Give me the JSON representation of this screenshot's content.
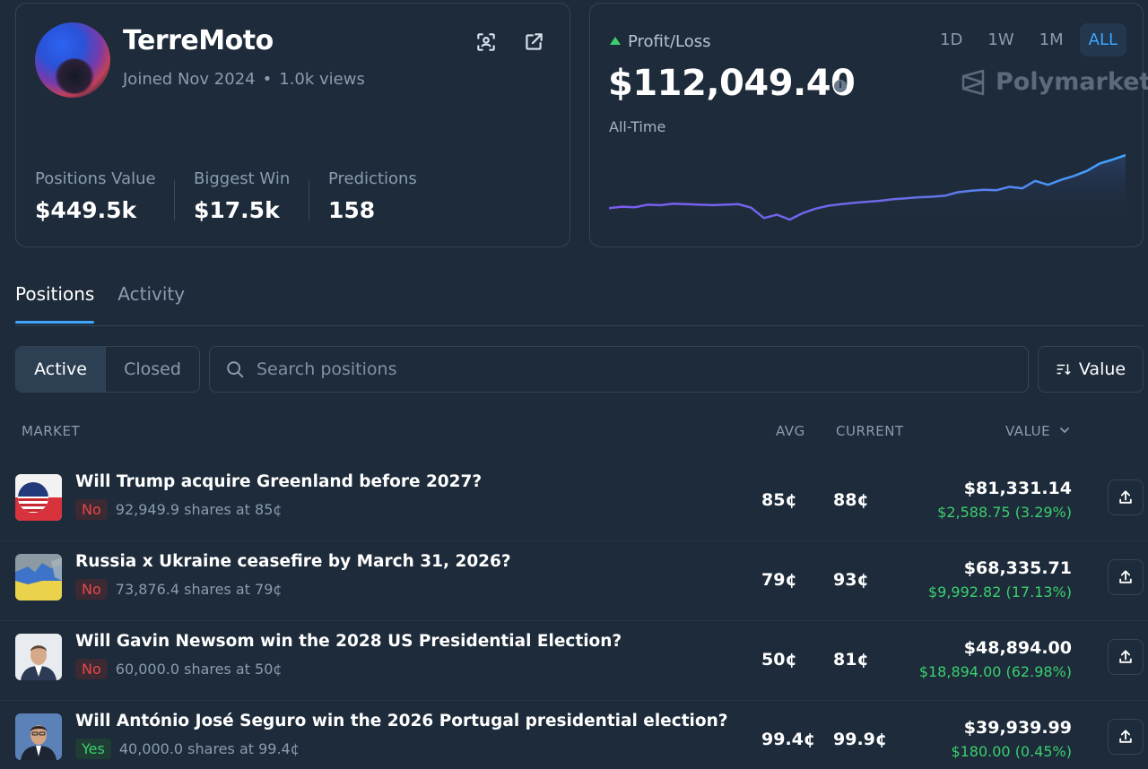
{
  "profile": {
    "username": "TerreMoto",
    "joined": "Joined Nov 2024",
    "views": "1.0k views",
    "stats": [
      {
        "label": "Positions Value",
        "value": "$449.5k"
      },
      {
        "label": "Biggest Win",
        "value": "$17.5k"
      },
      {
        "label": "Predictions",
        "value": "158"
      }
    ]
  },
  "pnl": {
    "label": "Profit/Loss",
    "value": "$112,049.40",
    "period_label": "All-Time",
    "ranges": [
      "1D",
      "1W",
      "1M",
      "ALL"
    ],
    "active_range": "ALL",
    "brand": "Polymarket",
    "accent_color": "#3ea6ff",
    "up_color": "#3ccf6e"
  },
  "chart_data": {
    "type": "line",
    "title": "",
    "xlabel": "",
    "ylabel": "",
    "x": [
      0,
      1,
      2,
      3,
      4,
      5,
      6,
      7,
      8,
      9,
      10,
      11,
      12,
      13,
      14,
      15,
      16,
      17,
      18,
      19,
      20,
      21,
      22,
      23,
      24,
      25,
      26,
      27,
      28,
      29,
      30,
      31,
      32,
      33,
      34,
      35,
      36,
      37,
      38,
      39,
      40
    ],
    "values": [
      5,
      8,
      7,
      12,
      11,
      14,
      13,
      12,
      11,
      12,
      13,
      6,
      -15,
      -8,
      -18,
      -5,
      4,
      10,
      13,
      16,
      18,
      20,
      23,
      25,
      27,
      28,
      30,
      37,
      40,
      42,
      41,
      48,
      45,
      60,
      52,
      62,
      70,
      80,
      95,
      103,
      112
    ],
    "color_gradient": [
      "#7b5cf0",
      "#3ea6ff"
    ]
  },
  "tabs": [
    "Positions",
    "Activity"
  ],
  "active_tab": "Positions",
  "filters": {
    "segments": [
      "Active",
      "Closed"
    ],
    "active_segment": "Active",
    "search_placeholder": "Search positions",
    "sort_label": "Value"
  },
  "table": {
    "headers": {
      "market": "MARKET",
      "avg": "AVG",
      "current": "CURRENT",
      "value": "VALUE"
    },
    "rows": [
      {
        "title": "Will Trump acquire Greenland before 2027?",
        "outcome": "No",
        "shares": "92,949.9 shares at 85¢",
        "avg": "85¢",
        "current": "88¢",
        "value": "$81,331.14",
        "change": "$2,588.75 (3.29%)",
        "thumb": "us-flag"
      },
      {
        "title": "Russia x Ukraine ceasefire by March 31, 2026?",
        "outcome": "No",
        "shares": "73,876.4 shares at 79¢",
        "avg": "79¢",
        "current": "93¢",
        "value": "$68,335.71",
        "change": "$9,992.82 (17.13%)",
        "thumb": "ukraine-map"
      },
      {
        "title": "Will Gavin Newsom win the 2028 US Presidential Election?",
        "outcome": "No",
        "shares": "60,000.0 shares at 50¢",
        "avg": "50¢",
        "current": "81¢",
        "value": "$48,894.00",
        "change": "$18,894.00 (62.98%)",
        "thumb": "newsom-portrait"
      },
      {
        "title": "Will António José Seguro win the 2026 Portugal presidential election?",
        "outcome": "Yes",
        "shares": "40,000.0 shares at 99.4¢",
        "avg": "99.4¢",
        "current": "99.9¢",
        "value": "$39,939.99",
        "change": "$180.00 (0.45%)",
        "thumb": "seguro-portrait"
      }
    ]
  }
}
